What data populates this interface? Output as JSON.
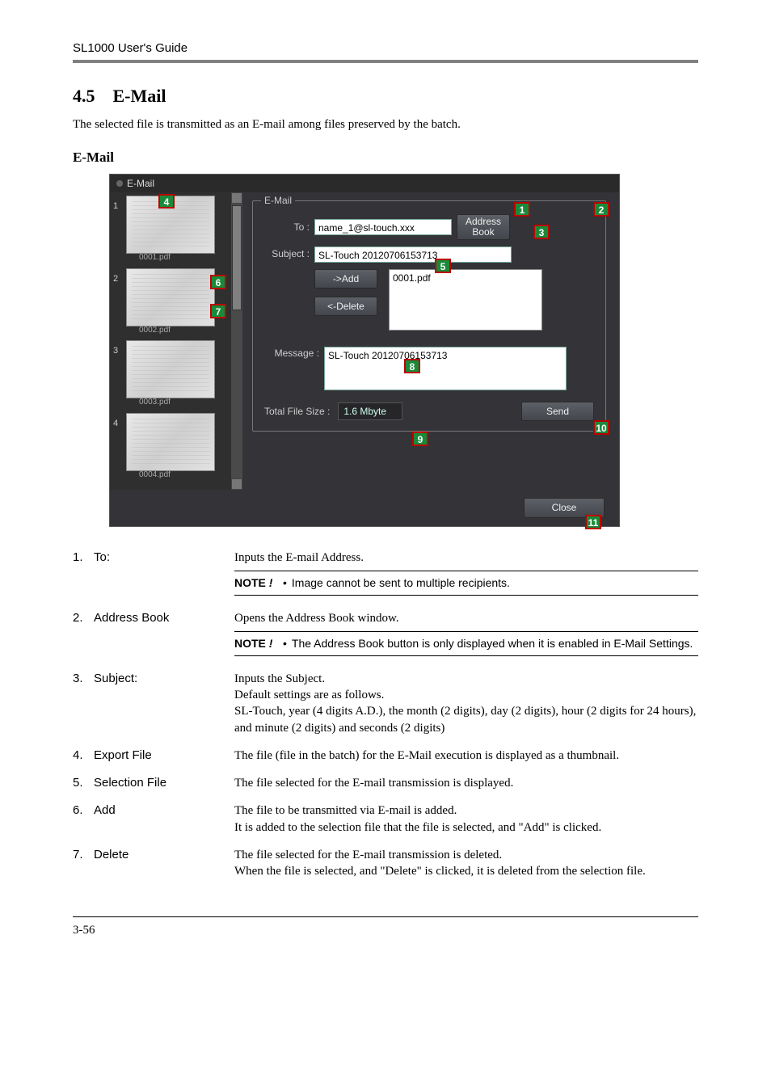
{
  "header": {
    "running": "SL1000 User's Guide"
  },
  "section": {
    "number": "4.5",
    "title": "E-Mail",
    "intro": "The selected file is transmitted as an E-mail among files preserved by the batch.",
    "subhead": "E-Mail"
  },
  "shot": {
    "window_title": "E-Mail",
    "fieldset_legend": "E-Mail",
    "to_label": "To :",
    "to_value": "name_1@sl-touch.xxx",
    "address_book_btn": "Address Book",
    "subject_label": "Subject :",
    "subject_value": "SL-Touch 20120706153713",
    "add_btn": "->Add",
    "delete_btn": "<-Delete",
    "file_in_list": "0001.pdf",
    "message_label": "Message :",
    "message_value": "SL-Touch 20120706153713",
    "total_label": "Total File Size :",
    "total_value": "1.6 Mbyte",
    "send_btn": "Send",
    "close_btn": "Close",
    "thumbs": [
      {
        "n": "1",
        "cap": "0001.pdf"
      },
      {
        "n": "2",
        "cap": "0002.pdf"
      },
      {
        "n": "3",
        "cap": "0003.pdf"
      },
      {
        "n": "4",
        "cap": "0004.pdf"
      }
    ],
    "markers": {
      "m1": "1",
      "m2": "2",
      "m3": "3",
      "m4": "4",
      "m5": "5",
      "m6": "6",
      "m7": "7",
      "m8": "8",
      "m9": "9",
      "m10": "10",
      "m11": "11"
    }
  },
  "items": [
    {
      "n": "1.",
      "name": "To:",
      "desc": "Inputs the E-mail Address.",
      "note": "Image cannot be sent to multiple recipients."
    },
    {
      "n": "2.",
      "name": "Address Book",
      "desc": "Opens the Address Book window.",
      "note": "The Address Book button is only displayed when it is enabled in E-Mail Settings."
    },
    {
      "n": "3.",
      "name": "Subject:",
      "desc": "Inputs the Subject.\nDefault settings are as follows.\nSL-Touch, year (4 digits A.D.), the month (2 digits), day (2 digits), hour (2 digits for 24 hours), and minute (2 digits) and seconds (2 digits)"
    },
    {
      "n": "4.",
      "name": "Export File",
      "desc": "The file (file in the batch) for the E-Mail execution is displayed as a thumbnail."
    },
    {
      "n": "5.",
      "name": "Selection File",
      "desc": "The file selected for the E-mail transmission is displayed."
    },
    {
      "n": "6.",
      "name": "Add",
      "desc": "The file to be transmitted via E-mail is added.\nIt is added to the selection file that the file is selected, and \"Add\" is clicked."
    },
    {
      "n": "7.",
      "name": "Delete",
      "desc": "The file selected for the E-mail transmission is deleted.\nWhen the file is selected, and \"Delete\" is clicked, it is deleted from the selection file."
    }
  ],
  "note_label": "NOTE",
  "note_bang": "!",
  "page_number": "3-56"
}
